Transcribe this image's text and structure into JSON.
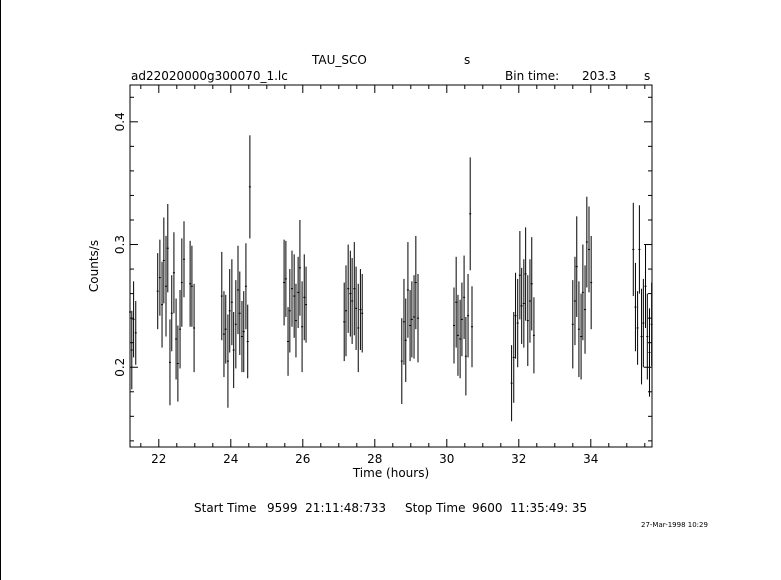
{
  "header": {
    "target_name": "TAU_SCO",
    "target_unit": "s",
    "file_name": "ad22020000g300070_1.lc",
    "bin_label": "Bin time:",
    "bin_value": "203.3",
    "bin_unit": "s"
  },
  "footer": {
    "start_label": "Start Time",
    "start_value": "9599  21:11:48:733",
    "stop_label": "Stop Time",
    "stop_value": "9600  11:35:49: 35",
    "date_stamp": "27-Mar-1998 10:29"
  },
  "chart_data": {
    "type": "scatter",
    "title": "TAU_SCO",
    "xlabel": "Time (hours)",
    "ylabel": "Counts/s",
    "xlim": [
      21.2,
      35.7
    ],
    "ylim": [
      0.135,
      0.43
    ],
    "xticks": [
      22,
      24,
      26,
      28,
      30,
      32,
      34
    ],
    "yticks": [
      0.2,
      0.3,
      0.4
    ],
    "grid": false,
    "legend": "none",
    "errorbars": true,
    "x_half_width": 0.028,
    "series": [
      {
        "x": [
          21.2,
          21.25,
          21.3,
          21.36,
          21.97,
          22.03,
          22.09,
          22.14,
          22.2,
          22.25,
          22.31,
          22.36,
          22.42,
          22.48,
          22.53,
          22.59,
          22.64,
          22.7,
          22.87,
          22.92,
          22.98,
          23.75,
          23.81,
          23.86,
          23.92,
          23.97,
          24.03,
          24.08,
          24.14,
          24.2,
          24.25,
          24.31,
          24.36,
          24.42,
          24.47,
          24.53,
          25.48,
          25.53,
          25.59,
          25.64,
          25.7,
          25.76,
          25.81,
          25.87,
          25.92,
          25.98,
          26.04,
          26.09,
          27.15,
          27.2,
          27.26,
          27.32,
          27.37,
          27.43,
          27.48,
          27.54,
          27.6,
          27.65,
          28.75,
          28.81,
          28.86,
          28.92,
          28.98,
          29.03,
          29.09,
          29.14,
          29.2,
          30.2,
          30.26,
          30.31,
          30.37,
          30.42,
          30.48,
          30.53,
          30.59,
          30.65,
          30.7,
          31.8,
          31.86,
          31.91,
          31.97,
          32.03,
          32.08,
          32.14,
          32.19,
          32.25,
          32.31,
          32.36,
          32.42,
          33.5,
          33.56,
          33.61,
          33.67,
          33.73,
          33.78,
          33.84,
          33.89,
          33.95,
          34.01,
          35.18,
          35.24,
          35.3,
          35.35,
          35.41,
          35.46,
          35.52,
          35.57,
          35.63,
          35.69
        ],
        "y": [
          0.245,
          0.214,
          0.239,
          0.228,
          0.262,
          0.273,
          0.251,
          0.287,
          0.266,
          0.297,
          0.204,
          0.244,
          0.277,
          0.223,
          0.203,
          0.231,
          0.269,
          0.288,
          0.268,
          0.266,
          0.232,
          0.258,
          0.227,
          0.231,
          0.205,
          0.246,
          0.253,
          0.214,
          0.235,
          0.263,
          0.244,
          0.225,
          0.229,
          0.266,
          0.221,
          0.347,
          0.269,
          0.272,
          0.221,
          0.246,
          0.264,
          0.258,
          0.238,
          0.261,
          0.281,
          0.233,
          0.257,
          0.251,
          0.237,
          0.246,
          0.264,
          0.26,
          0.254,
          0.264,
          0.248,
          0.232,
          0.247,
          0.244,
          0.205,
          0.237,
          0.222,
          0.263,
          0.234,
          0.239,
          0.241,
          0.269,
          0.24,
          0.234,
          0.253,
          0.226,
          0.223,
          0.239,
          0.257,
          0.209,
          0.242,
          0.325,
          0.233,
          0.187,
          0.208,
          0.242,
          0.236,
          0.275,
          0.25,
          0.252,
          0.276,
          0.238,
          0.254,
          0.268,
          0.226,
          0.235,
          0.254,
          0.282,
          0.231,
          0.225,
          0.261,
          0.247,
          0.302,
          0.296,
          0.269,
          0.296,
          0.249,
          0.232,
          0.296,
          0.225,
          0.236,
          0.266,
          0.225,
          0.212,
          0.235
        ],
        "errors": [
          0.033,
          0.032,
          0.031,
          0.026,
          0.031,
          0.031,
          0.035,
          0.035,
          0.041,
          0.036,
          0.035,
          0.031,
          0.033,
          0.033,
          0.031,
          0.032,
          0.036,
          0.031,
          0.035,
          0.033,
          0.036,
          0.036,
          0.035,
          0.028,
          0.038,
          0.034,
          0.035,
          0.031,
          0.036,
          0.036,
          0.034,
          0.029,
          0.033,
          0.035,
          0.03,
          0.042,
          0.035,
          0.031,
          0.028,
          0.034,
          0.031,
          0.034,
          0.03,
          0.029,
          0.039,
          0.037,
          0.035,
          0.031,
          0.032,
          0.037,
          0.036,
          0.035,
          0.035,
          0.038,
          0.034,
          0.036,
          0.033,
          0.032,
          0.035,
          0.035,
          0.034,
          0.039,
          0.029,
          0.031,
          0.034,
          0.038,
          0.036,
          0.031,
          0.037,
          0.033,
          0.032,
          0.03,
          0.034,
          0.032,
          0.034,
          0.046,
          0.033,
          0.031,
          0.037,
          0.035,
          0.036,
          0.036,
          0.031,
          0.036,
          0.038,
          0.037,
          0.034,
          0.038,
          0.031,
          0.036,
          0.036,
          0.041,
          0.039,
          0.035,
          0.039,
          0.036,
          0.037,
          0.035,
          0.038,
          0.038,
          0.036,
          0.03,
          0.036,
          0.039,
          0.036,
          0.034,
          0.035,
          0.036,
          0.034
        ]
      }
    ]
  }
}
